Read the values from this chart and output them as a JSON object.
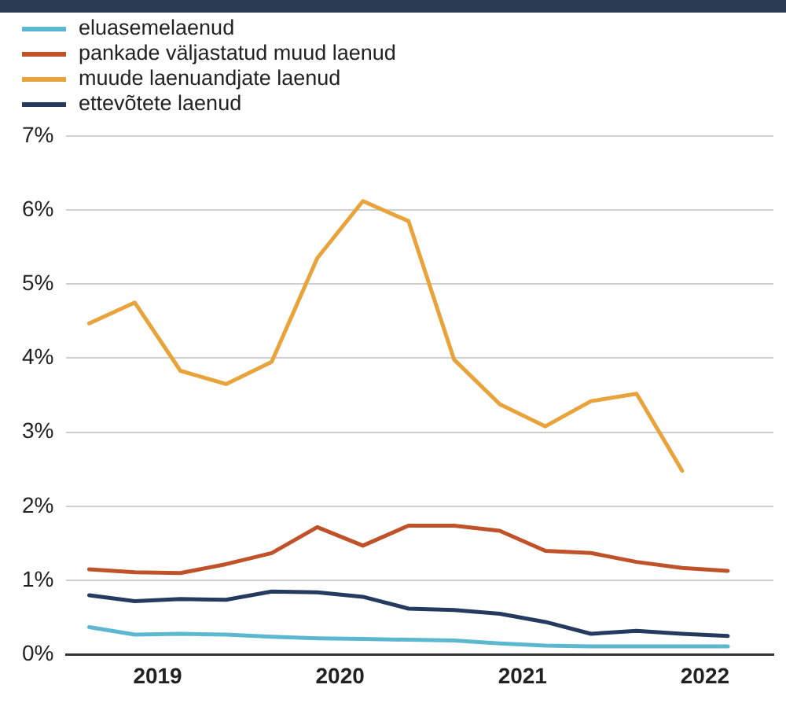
{
  "chart_data": {
    "type": "line",
    "x": [
      2019.125,
      2019.375,
      2019.625,
      2019.875,
      2020.125,
      2020.375,
      2020.625,
      2020.875,
      2021.125,
      2021.375,
      2021.625,
      2021.875,
      2022.125,
      2022.375,
      2022.625
    ],
    "xlim": [
      2019,
      2022.875
    ],
    "xticks": [
      {
        "value": 2019.5,
        "label": "2019"
      },
      {
        "value": 2020.5,
        "label": "2020"
      },
      {
        "value": 2021.5,
        "label": "2021"
      },
      {
        "value": 2022.5,
        "label": "2022"
      }
    ],
    "ylim": [
      0,
      7
    ],
    "yticks": [
      {
        "value": 0,
        "label": "0%"
      },
      {
        "value": 1,
        "label": "1%"
      },
      {
        "value": 2,
        "label": "2%"
      },
      {
        "value": 3,
        "label": "3%"
      },
      {
        "value": 4,
        "label": "4%"
      },
      {
        "value": 5,
        "label": "5%"
      },
      {
        "value": 6,
        "label": "6%"
      },
      {
        "value": 7,
        "label": "7%"
      }
    ],
    "grid": "y",
    "legend": "top left",
    "marker": "none",
    "line_style": "solid",
    "series": [
      {
        "name": "eluasemelaenud",
        "color": "#5bb8d0",
        "values": [
          0.37,
          0.27,
          0.28,
          0.27,
          0.24,
          0.22,
          0.21,
          0.2,
          0.19,
          0.15,
          0.12,
          0.11,
          0.11,
          0.11,
          0.11
        ]
      },
      {
        "name": "pankade väljastatud muud laenud",
        "color": "#c0522a",
        "values": [
          1.15,
          1.11,
          1.1,
          1.22,
          1.37,
          1.72,
          1.47,
          1.74,
          1.74,
          1.67,
          1.4,
          1.37,
          1.25,
          1.17,
          1.13
        ]
      },
      {
        "name": "muude laenuandjate laenud",
        "color": "#e8a33a",
        "values": [
          4.47,
          4.75,
          3.83,
          3.65,
          3.95,
          5.35,
          6.12,
          5.85,
          3.98,
          3.38,
          3.08,
          3.42,
          3.52,
          2.48,
          null
        ]
      },
      {
        "name": "ettevõtete laenud",
        "color": "#243a5e",
        "values": [
          0.8,
          0.72,
          0.75,
          0.74,
          0.85,
          0.84,
          0.78,
          0.62,
          0.6,
          0.55,
          0.44,
          0.28,
          0.32,
          0.28,
          0.25
        ]
      }
    ]
  }
}
